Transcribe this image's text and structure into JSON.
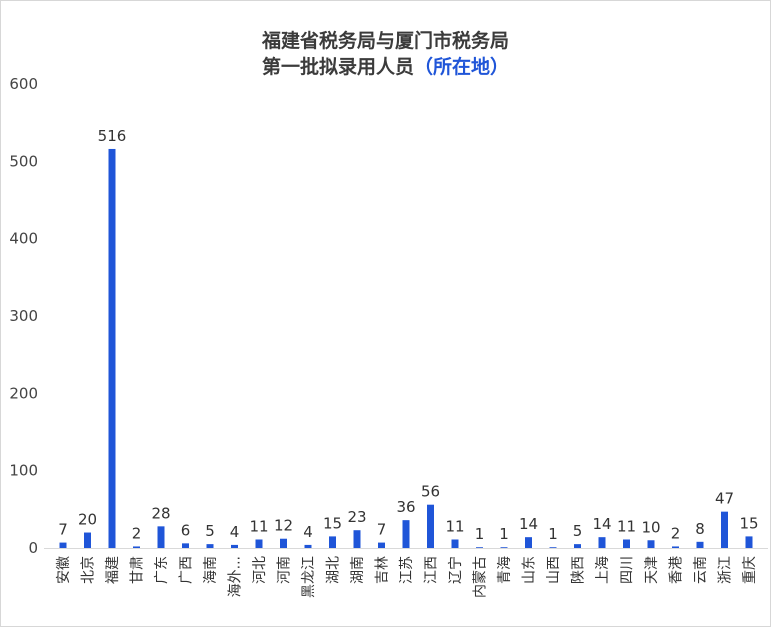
{
  "chart_data": {
    "type": "bar",
    "title_line1": "福建省税务局与厦门市税务局",
    "title_line2": "第一批拟录用人员",
    "title_accent": "（所在地）",
    "xlabel": "",
    "ylabel": "",
    "ylim": [
      0,
      600
    ],
    "yticks": [
      0,
      100,
      200,
      300,
      400,
      500,
      600
    ],
    "grid": false,
    "bar_color": "#1f55d8",
    "categories": [
      "安徽",
      "北京",
      "福建",
      "甘肃",
      "广东",
      "广西",
      "海南",
      "海外...",
      "河北",
      "河南",
      "黑龙江",
      "湖北",
      "湖南",
      "吉林",
      "江苏",
      "江西",
      "辽宁",
      "内蒙古",
      "青海",
      "山东",
      "山西",
      "陕西",
      "上海",
      "四川",
      "天津",
      "香港",
      "云南",
      "浙江",
      "重庆"
    ],
    "values": [
      7,
      20,
      516,
      2,
      28,
      6,
      5,
      4,
      11,
      12,
      4,
      15,
      23,
      7,
      36,
      56,
      11,
      1,
      1,
      14,
      1,
      5,
      14,
      11,
      10,
      2,
      8,
      47,
      15
    ]
  }
}
